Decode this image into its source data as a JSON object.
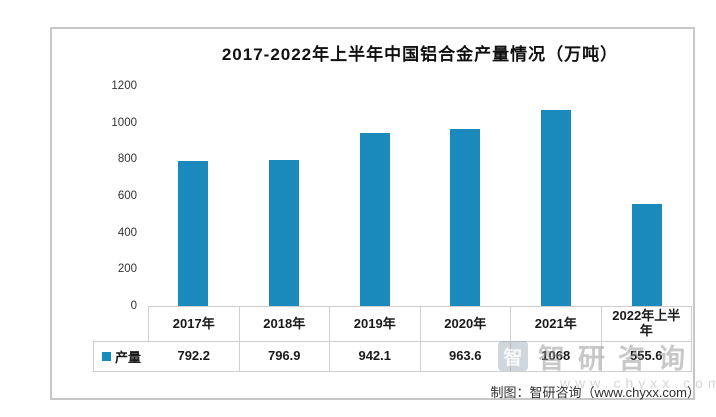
{
  "chart_data": {
    "type": "bar",
    "title": "2017-2022年上半年中国铝合金产量情况（万吨）",
    "categories": [
      "2017年",
      "2018年",
      "2019年",
      "2020年",
      "2021年",
      "2022年上半年"
    ],
    "series": [
      {
        "name": "产量",
        "values": [
          792.2,
          796.9,
          942.1,
          963.6,
          1068,
          555.6
        ],
        "value_labels": [
          "792.2",
          "796.9",
          "942.1",
          "963.6",
          "1068",
          "555.6"
        ]
      }
    ],
    "xlabel": "",
    "ylabel": "",
    "ylim": [
      0,
      1200
    ],
    "yticks": [
      0,
      200,
      400,
      600,
      800,
      1000,
      1200
    ],
    "grid": false,
    "legend_position": "data-table-left",
    "data_table_shown": true,
    "bar_color": "#1A89BC"
  },
  "watermark": {
    "logo_glyph": "智",
    "brand": "智研咨询",
    "url": "www.chyxx.com"
  },
  "caption": "制图：智研咨询（www.chyxx.com）"
}
